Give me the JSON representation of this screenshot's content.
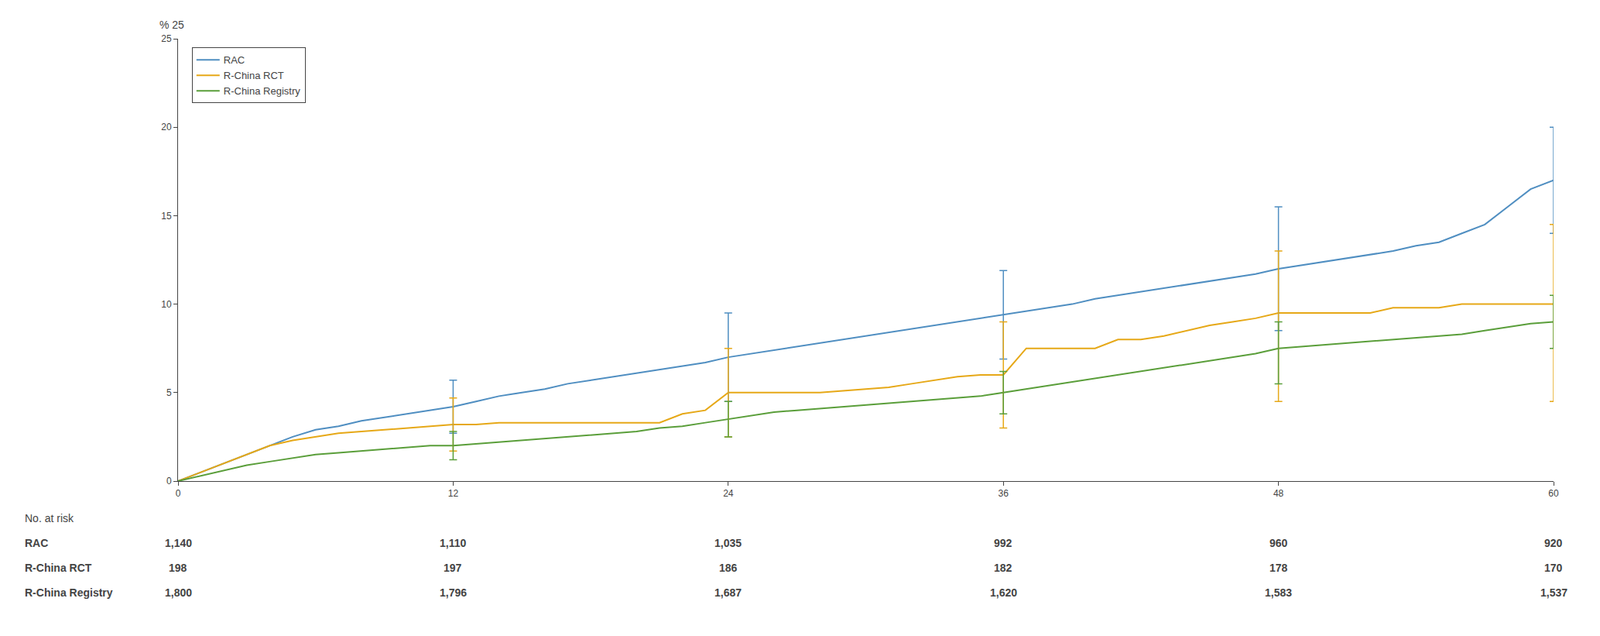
{
  "chart_data": {
    "type": "line",
    "ylabel": "% 25",
    "xlim": [
      0,
      60
    ],
    "ylim": [
      0,
      25
    ],
    "xticks": [
      0,
      12,
      24,
      36,
      48,
      60
    ],
    "yticks": [
      0,
      5,
      10,
      15,
      20,
      25
    ],
    "grid": false,
    "legend": "upper left",
    "x": [
      0,
      1,
      2,
      3,
      4,
      5,
      6,
      7,
      8,
      9,
      10,
      11,
      12,
      13,
      14,
      15,
      16,
      17,
      18,
      19,
      20,
      21,
      22,
      23,
      24,
      25,
      26,
      27,
      28,
      29,
      30,
      31,
      32,
      33,
      34,
      35,
      36,
      37,
      38,
      39,
      40,
      41,
      42,
      43,
      44,
      45,
      46,
      47,
      48,
      49,
      50,
      51,
      52,
      53,
      54,
      55,
      56,
      57,
      58,
      59,
      60
    ],
    "series": [
      {
        "name": "RAC",
        "color": "#4f8ec1",
        "values": [
          0,
          0.5,
          1.0,
          1.5,
          2.0,
          2.5,
          2.9,
          3.1,
          3.4,
          3.6,
          3.8,
          4.0,
          4.2,
          4.5,
          4.8,
          5.0,
          5.2,
          5.5,
          5.7,
          5.9,
          6.1,
          6.3,
          6.5,
          6.7,
          7.0,
          7.2,
          7.4,
          7.6,
          7.8,
          8.0,
          8.2,
          8.4,
          8.6,
          8.8,
          9.0,
          9.2,
          9.4,
          9.6,
          9.8,
          10.0,
          10.3,
          10.5,
          10.7,
          10.9,
          11.1,
          11.3,
          11.5,
          11.7,
          12.0,
          12.2,
          12.4,
          12.6,
          12.8,
          13.0,
          13.3,
          13.5,
          14.0,
          14.5,
          15.5,
          16.5,
          17.0
        ],
        "error_bars": {
          "x": [
            12,
            24,
            36,
            48,
            60
          ],
          "y": [
            4.2,
            7.0,
            9.4,
            12.0,
            17.0
          ],
          "minus": [
            1.5,
            2.5,
            2.5,
            3.5,
            3.0
          ],
          "plus": [
            1.5,
            2.5,
            2.5,
            3.5,
            3.0
          ]
        }
      },
      {
        "name": "R-China RCT",
        "color": "#e6a817",
        "values": [
          0,
          0.5,
          1.0,
          1.5,
          2.0,
          2.3,
          2.5,
          2.7,
          2.8,
          2.9,
          3.0,
          3.1,
          3.2,
          3.2,
          3.3,
          3.3,
          3.3,
          3.3,
          3.3,
          3.3,
          3.3,
          3.3,
          3.8,
          4.0,
          5.0,
          5.0,
          5.0,
          5.0,
          5.0,
          5.1,
          5.2,
          5.3,
          5.5,
          5.7,
          5.9,
          6.0,
          6.0,
          7.5,
          7.5,
          7.5,
          7.5,
          8.0,
          8.0,
          8.2,
          8.5,
          8.8,
          9.0,
          9.2,
          9.5,
          9.5,
          9.5,
          9.5,
          9.5,
          9.8,
          9.8,
          9.8,
          10.0,
          10.0,
          10.0,
          10.0,
          10.0
        ],
        "error_bars": {
          "x": [
            12,
            24,
            36,
            48,
            60
          ],
          "y": [
            3.2,
            5.0,
            6.0,
            9.5,
            10.0
          ],
          "minus": [
            1.5,
            2.5,
            3.0,
            5.0,
            5.5
          ],
          "plus": [
            1.5,
            2.5,
            3.0,
            3.5,
            4.5
          ]
        }
      },
      {
        "name": "R-China Registry",
        "color": "#5a9e3a",
        "values": [
          0,
          0.3,
          0.6,
          0.9,
          1.1,
          1.3,
          1.5,
          1.6,
          1.7,
          1.8,
          1.9,
          2.0,
          2.0,
          2.1,
          2.2,
          2.3,
          2.4,
          2.5,
          2.6,
          2.7,
          2.8,
          3.0,
          3.1,
          3.3,
          3.5,
          3.7,
          3.9,
          4.0,
          4.1,
          4.2,
          4.3,
          4.4,
          4.5,
          4.6,
          4.7,
          4.8,
          5.0,
          5.2,
          5.4,
          5.6,
          5.8,
          6.0,
          6.2,
          6.4,
          6.6,
          6.8,
          7.0,
          7.2,
          7.5,
          7.6,
          7.7,
          7.8,
          7.9,
          8.0,
          8.1,
          8.2,
          8.3,
          8.5,
          8.7,
          8.9,
          9.0
        ],
        "error_bars": {
          "x": [
            12,
            24,
            36,
            48,
            60
          ],
          "y": [
            2.0,
            3.5,
            5.0,
            7.5,
            9.0
          ],
          "minus": [
            0.8,
            1.0,
            1.2,
            2.0,
            1.5
          ],
          "plus": [
            0.8,
            1.0,
            1.2,
            1.5,
            1.5
          ]
        }
      }
    ],
    "at_risk": {
      "label": "No. at risk",
      "rows": [
        {
          "label": "RAC",
          "values": [
            "1,140",
            "1,110",
            "1,035",
            "992",
            "960",
            "920"
          ]
        },
        {
          "label": "R-China RCT",
          "values": [
            "198",
            "197",
            "186",
            "182",
            "178",
            "170"
          ]
        },
        {
          "label": "R-China Registry",
          "values": [
            "1,800",
            "1,796",
            "1,687",
            "1,620",
            "1,583",
            "1,537"
          ]
        }
      ]
    }
  }
}
